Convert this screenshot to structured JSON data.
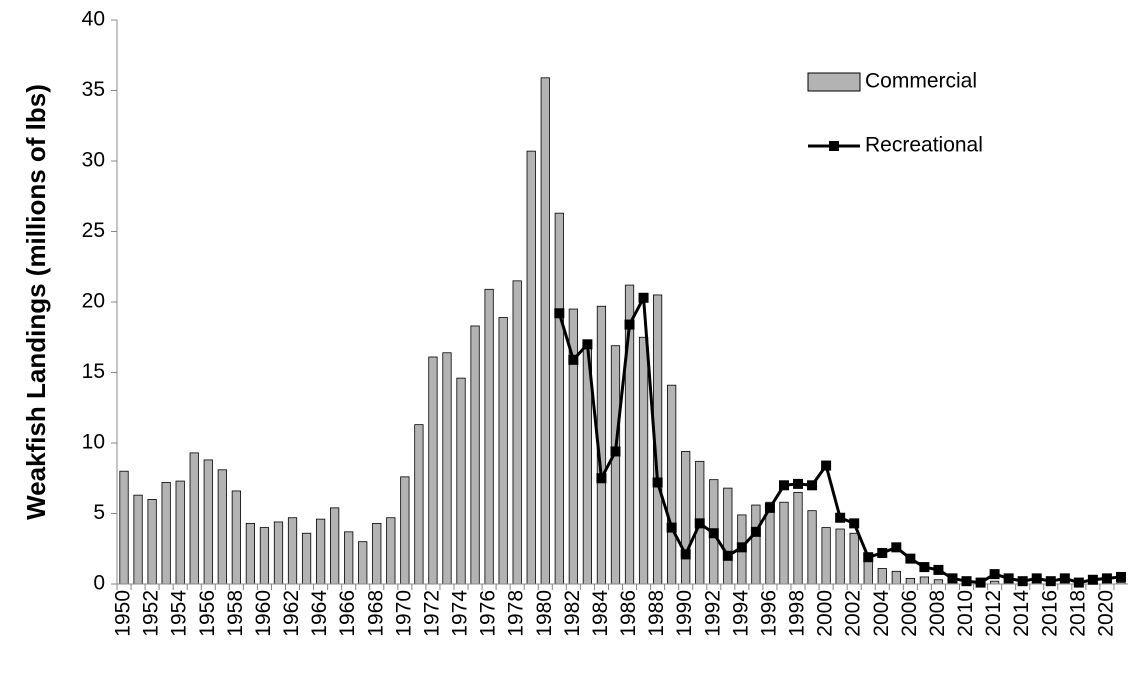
{
  "chart_data": {
    "type": "bar_line",
    "y_label": "Weakfish Landings (millions of lbs)",
    "categories": [
      "1950",
      null,
      "1952",
      null,
      "1954",
      null,
      "1956",
      null,
      "1958",
      null,
      "1960",
      null,
      "1962",
      null,
      "1964",
      null,
      "1966",
      null,
      "1968",
      null,
      "1970",
      null,
      "1972",
      null,
      "1974",
      null,
      "1976",
      null,
      "1978",
      null,
      "1980",
      null,
      "1982",
      null,
      "1984",
      null,
      "1986",
      null,
      "1988",
      null,
      "1990",
      null,
      "1992",
      null,
      "1994",
      null,
      "1996",
      null,
      "1998",
      null,
      "2000",
      null,
      "2002",
      null,
      "2004",
      null,
      "2006",
      null,
      "2008",
      null,
      "2010",
      null,
      "2012",
      null,
      "2014",
      null,
      "2016",
      null,
      "2018",
      null,
      "2020",
      null
    ],
    "series": [
      {
        "name": "Commercial",
        "kind": "bar",
        "color": "#b3b3b3",
        "values": [
          8.0,
          6.3,
          6.0,
          7.2,
          7.3,
          9.3,
          8.8,
          8.1,
          6.6,
          4.3,
          4.0,
          4.4,
          4.7,
          3.6,
          4.6,
          5.4,
          3.7,
          3.0,
          4.3,
          4.7,
          7.6,
          11.3,
          16.1,
          16.4,
          14.6,
          18.3,
          20.9,
          18.9,
          21.5,
          30.7,
          35.9,
          26.3,
          19.5,
          17.1,
          19.7,
          16.9,
          21.2,
          17.5,
          20.5,
          14.1,
          9.4,
          8.7,
          7.4,
          6.8,
          4.9,
          5.6,
          5.8,
          5.8,
          6.5,
          5.2,
          4.0,
          3.9,
          3.6,
          2.0,
          1.1,
          0.9,
          0.4,
          0.5,
          0.3,
          0.2,
          0.1,
          0.1,
          0.2,
          0.1,
          0.1,
          0.1,
          0.1,
          0.1,
          0.1,
          0.1,
          0.1,
          0.1
        ]
      },
      {
        "name": "Recreational",
        "kind": "line",
        "color": "#000000",
        "values": [
          null,
          null,
          null,
          null,
          null,
          null,
          null,
          null,
          null,
          null,
          null,
          null,
          null,
          null,
          null,
          null,
          null,
          null,
          null,
          null,
          null,
          null,
          null,
          null,
          null,
          null,
          null,
          null,
          null,
          null,
          null,
          19.2,
          15.9,
          17.0,
          7.5,
          9.4,
          18.4,
          20.3,
          7.2,
          4.0,
          2.1,
          4.3,
          3.6,
          2.0,
          2.6,
          3.7,
          5.4,
          7.0,
          7.1,
          7.0,
          8.4,
          4.7,
          4.3,
          1.9,
          2.2,
          2.6,
          1.8,
          1.2,
          1.0,
          0.4,
          0.2,
          0.1,
          0.7,
          0.4,
          0.2,
          0.4,
          0.2,
          0.4,
          0.1,
          0.3,
          0.4,
          0.5
        ]
      }
    ],
    "ylim": [
      0,
      40
    ],
    "yticks": [
      0,
      5,
      10,
      15,
      20,
      25,
      30,
      35,
      40
    ],
    "legend": "upper right"
  }
}
